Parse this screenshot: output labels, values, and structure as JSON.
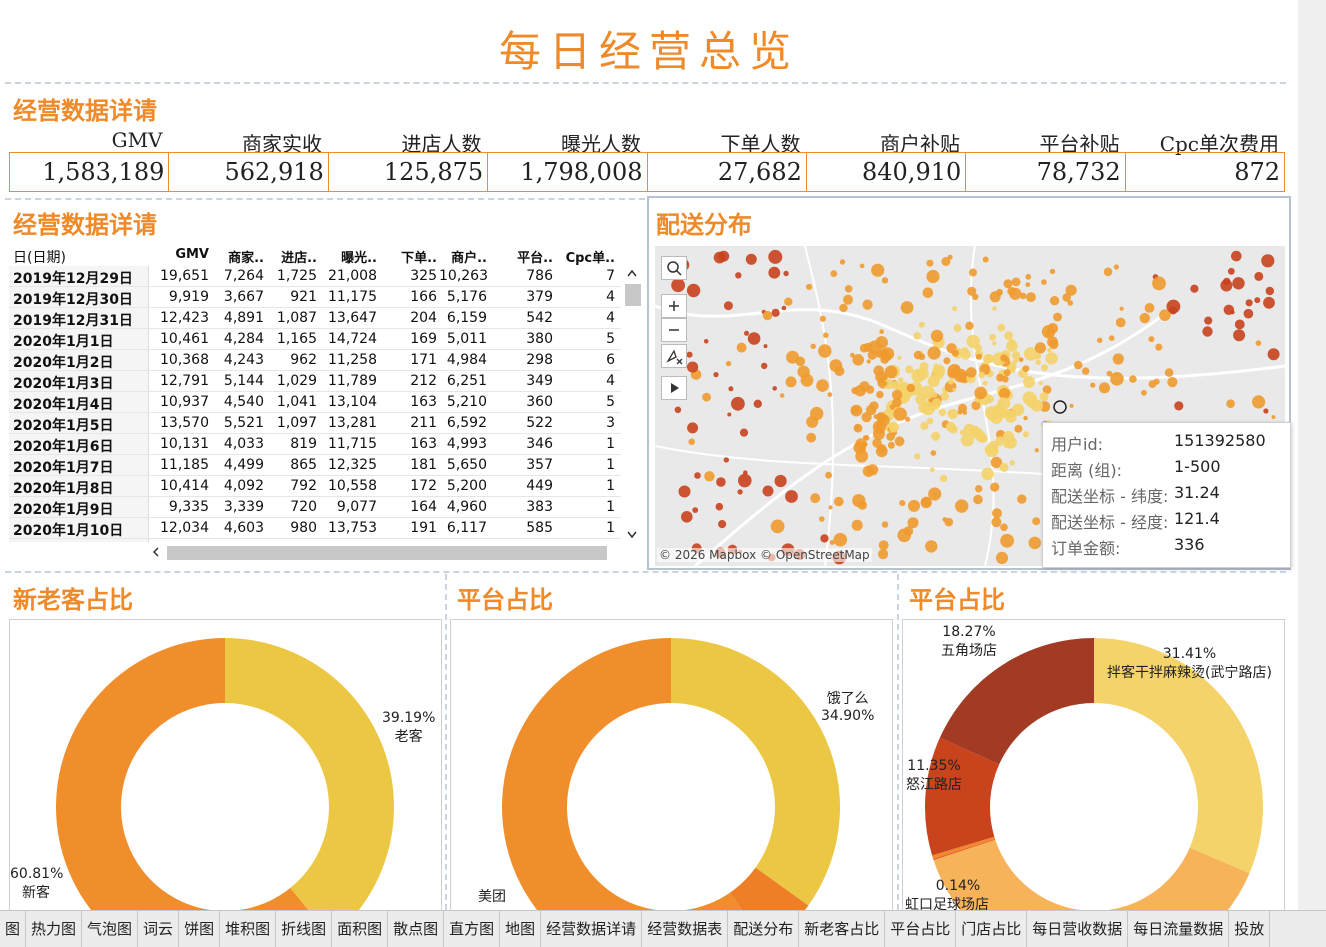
{
  "title": "每日经营总览",
  "kpi_section_title": "经营数据详请",
  "kpis": [
    {
      "label": "GMV",
      "value": "1,583,189"
    },
    {
      "label": "商家实收",
      "value": "562,918"
    },
    {
      "label": "进店人数",
      "value": "125,875"
    },
    {
      "label": "曝光人数",
      "value": "1,798,008"
    },
    {
      "label": "下单人数",
      "value": "27,682"
    },
    {
      "label": "商户补贴",
      "value": "840,910"
    },
    {
      "label": "平台补贴",
      "value": "78,732"
    },
    {
      "label": "Cpc单次费用",
      "value": "872"
    }
  ],
  "table_section_title": "经营数据详请",
  "table": {
    "date_header": "日(日期)",
    "columns": [
      "GMV",
      "商家..",
      "进店..",
      "曝光..",
      "下单..",
      "商户..",
      "平台..",
      "Cpc单.."
    ],
    "rows": [
      {
        "date": "2019年12月29日",
        "cells": [
          "19,651",
          "7,264",
          "1,725",
          "21,008",
          "325",
          "10,263",
          "786",
          "7"
        ]
      },
      {
        "date": "2019年12月30日",
        "cells": [
          "9,919",
          "3,667",
          "921",
          "11,175",
          "166",
          "5,176",
          "379",
          "4"
        ]
      },
      {
        "date": "2019年12月31日",
        "cells": [
          "12,423",
          "4,891",
          "1,087",
          "13,647",
          "204",
          "6,159",
          "542",
          "4"
        ]
      },
      {
        "date": "2020年1月1日",
        "cells": [
          "10,461",
          "4,284",
          "1,165",
          "14,724",
          "169",
          "5,011",
          "380",
          "5"
        ]
      },
      {
        "date": "2020年1月2日",
        "cells": [
          "10,368",
          "4,243",
          "962",
          "11,258",
          "171",
          "4,984",
          "298",
          "6"
        ]
      },
      {
        "date": "2020年1月3日",
        "cells": [
          "12,791",
          "5,144",
          "1,029",
          "11,789",
          "212",
          "6,251",
          "349",
          "4"
        ]
      },
      {
        "date": "2020年1月4日",
        "cells": [
          "10,937",
          "4,540",
          "1,041",
          "13,104",
          "163",
          "5,210",
          "360",
          "5"
        ]
      },
      {
        "date": "2020年1月5日",
        "cells": [
          "13,570",
          "5,521",
          "1,097",
          "13,281",
          "211",
          "6,592",
          "522",
          "3"
        ]
      },
      {
        "date": "2020年1月6日",
        "cells": [
          "10,131",
          "4,033",
          "819",
          "11,715",
          "163",
          "4,993",
          "346",
          "1"
        ]
      },
      {
        "date": "2020年1月7日",
        "cells": [
          "11,185",
          "4,499",
          "865",
          "12,325",
          "181",
          "5,650",
          "357",
          "1"
        ]
      },
      {
        "date": "2020年1月8日",
        "cells": [
          "10,414",
          "4,092",
          "792",
          "10,558",
          "172",
          "5,200",
          "449",
          "1"
        ]
      },
      {
        "date": "2020年1月9日",
        "cells": [
          "9,335",
          "3,339",
          "720",
          "9,077",
          "164",
          "4,960",
          "383",
          "1"
        ]
      },
      {
        "date": "2020年1月10日",
        "cells": [
          "12,034",
          "4,603",
          "980",
          "13,753",
          "191",
          "6,117",
          "585",
          "1"
        ]
      }
    ]
  },
  "map": {
    "title": "配送分布",
    "attribution": "© 2026 Mapbox © OpenStreetMap",
    "tooltip": [
      {
        "k": "用户id:",
        "v": "151392580"
      },
      {
        "k": "距离 (组):",
        "v": "1-500"
      },
      {
        "k": "配送坐标 - 纬度:",
        "v": "31.24"
      },
      {
        "k": "配送坐标 - 经度:",
        "v": "121.4"
      },
      {
        "k": "订单金额:",
        "v": "336"
      }
    ],
    "colors": {
      "light": "#f4d36a",
      "mid": "#f09a2e",
      "dark": "#c9431d"
    }
  },
  "donuts": [
    {
      "title": "新老客占比",
      "slices": [
        {
          "name": "老客",
          "pct": "39.19%",
          "value": 39.19,
          "color": "#ecc744"
        },
        {
          "name": "新客",
          "pct": "60.81%",
          "value": 60.81,
          "color": "#f08e2c"
        }
      ]
    },
    {
      "title": "平台占比",
      "slices": [
        {
          "name": "饿了么",
          "pct": "34.90%",
          "value": 34.9,
          "color": "#ecc744"
        },
        {
          "name": "",
          "pct": "",
          "value": 5.5,
          "color": "#ee7f26"
        },
        {
          "name": "美团",
          "pct": "",
          "value": 59.6,
          "color": "#f08e2c"
        }
      ]
    },
    {
      "title": "平台占比",
      "slices": [
        {
          "name": "拌客干拌麻辣烫(武宁路店)",
          "pct": "31.41%",
          "value": 31.41,
          "color": "#f4d36a"
        },
        {
          "name": "",
          "pct": "",
          "value": 38.5,
          "color": "#f7b35a"
        },
        {
          "name": "虹口足球场店",
          "pct": "0.14%",
          "value": 0.14,
          "color": "#f05a28"
        },
        {
          "name": "",
          "pct": "",
          "value": 0.33,
          "color": "#ef8a2b"
        },
        {
          "name": "怒江路店",
          "pct": "11.35%",
          "value": 11.35,
          "color": "#c9431d"
        },
        {
          "name": "五角场店",
          "pct": "18.27%",
          "value": 18.27,
          "color": "#a33a24"
        }
      ]
    }
  ],
  "tabs": [
    "图",
    "热力图",
    "气泡图",
    "词云",
    "饼图",
    "堆积图",
    "折线图",
    "面积图",
    "散点图",
    "直方图",
    "地图",
    "经营数据详请",
    "经营数据表",
    "配送分布",
    "新老客占比",
    "平台占比",
    "门店占比",
    "每日营收数据",
    "每日流量数据",
    "投放"
  ]
}
